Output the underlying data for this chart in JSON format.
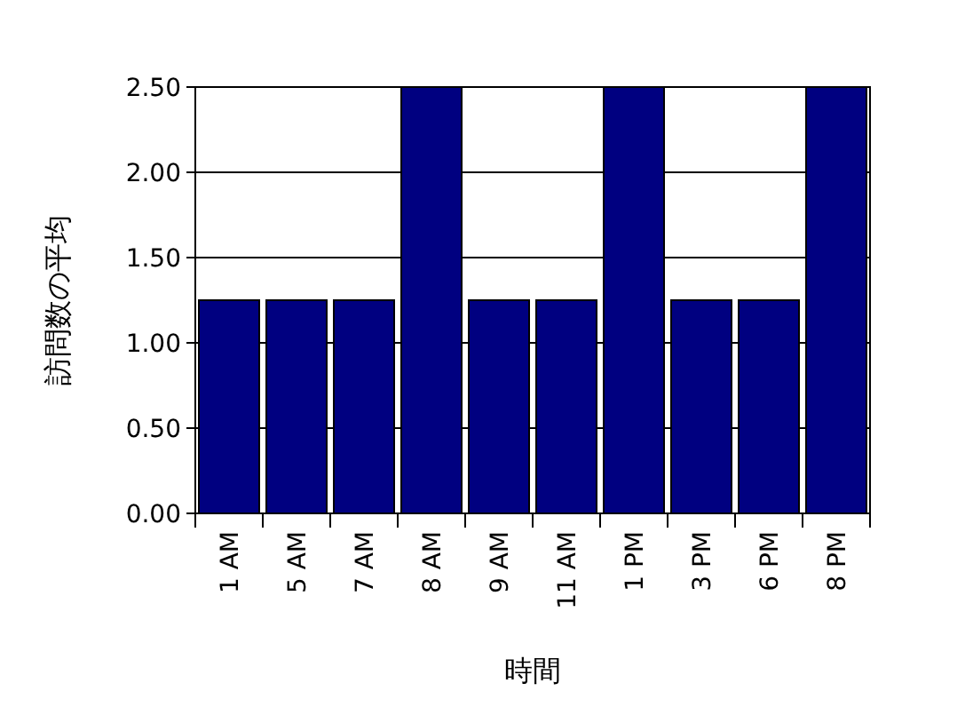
{
  "chart_data": {
    "type": "bar",
    "xlabel": "時間",
    "ylabel": "訪問数の平均",
    "categories": [
      "1 AM",
      "5 AM",
      "7 AM",
      "8 AM",
      "9 AM",
      "11 AM",
      "1 PM",
      "3 PM",
      "6 PM",
      "8 PM"
    ],
    "values": [
      1.25,
      1.25,
      1.25,
      2.5,
      1.25,
      1.25,
      2.5,
      1.25,
      1.25,
      2.5
    ],
    "color": "#000080",
    "ylim": [
      0,
      2.5
    ],
    "yticks": [
      {
        "value": 0,
        "label": "0.00"
      },
      {
        "value": 0.5,
        "label": "0.50"
      },
      {
        "value": 1,
        "label": "1.00"
      },
      {
        "value": 1.5,
        "label": "1.50"
      },
      {
        "value": 2,
        "label": "2.00"
      },
      {
        "value": 2.5,
        "label": "2.50"
      }
    ],
    "grid": "y"
  }
}
